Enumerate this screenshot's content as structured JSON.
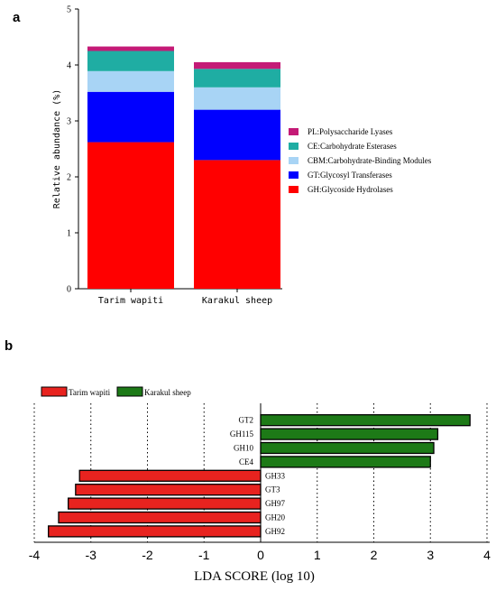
{
  "chart_data": [
    {
      "type": "bar",
      "stacked": true,
      "panel_label": "a",
      "categories": [
        "Tarim wapiti",
        "Karakul sheep"
      ],
      "ylabel": "Relative abundance (%)",
      "ylim": [
        0,
        5
      ],
      "yticks": [
        "0",
        "1",
        "2",
        "3",
        "4",
        "5"
      ],
      "series": [
        {
          "name": "GH:Glycoside Hydrolases",
          "color": "#ff0000",
          "values": [
            2.62,
            2.3
          ]
        },
        {
          "name": "GT:Glycosyl Transferases",
          "color": "#0000ff",
          "values": [
            0.9,
            0.9
          ]
        },
        {
          "name": "CBM:Carbohydrate-Binding Modules",
          "color": "#a8d4f5",
          "values": [
            0.37,
            0.4
          ]
        },
        {
          "name": "CE:Carbohydrate Esterases",
          "color": "#1fada3",
          "values": [
            0.36,
            0.33
          ]
        },
        {
          "name": "PL:Polysaccharide Lyases",
          "color": "#c41a76",
          "values": [
            0.08,
            0.12
          ]
        }
      ],
      "legend_order": [
        "PL:Polysaccharide Lyases",
        "CE:Carbohydrate Esterases",
        "CBM:Carbohydrate-Binding Modules",
        "GT:Glycosyl Transferases",
        "GH:Glycoside Hydrolases"
      ],
      "legend_position": "right"
    },
    {
      "type": "bar",
      "orientation": "horizontal",
      "panel_label": "b",
      "xlabel": "LDA SCORE (log 10)",
      "xlim": [
        -4,
        4
      ],
      "xticks": [
        "-4",
        "-3",
        "-2",
        "-1",
        "0",
        "1",
        "2",
        "3",
        "4"
      ],
      "legend_position": "top-left",
      "legend": [
        {
          "name": "Tarim wapiti",
          "color": "#e8231f"
        },
        {
          "name": "Karakul sheep",
          "color": "#1d7a17"
        }
      ],
      "features": [
        {
          "name": "GT2",
          "group": "Karakul sheep",
          "value": 3.7
        },
        {
          "name": "GH115",
          "group": "Karakul sheep",
          "value": 3.13
        },
        {
          "name": "GH10",
          "group": "Karakul sheep",
          "value": 3.06
        },
        {
          "name": "CE4",
          "group": "Karakul sheep",
          "value": 3.0
        },
        {
          "name": "GH33",
          "group": "Tarim wapiti",
          "value": -3.2
        },
        {
          "name": "GT3",
          "group": "Tarim wapiti",
          "value": -3.27
        },
        {
          "name": "GH97",
          "group": "Tarim wapiti",
          "value": -3.4
        },
        {
          "name": "GH20",
          "group": "Tarim wapiti",
          "value": -3.57
        },
        {
          "name": "GH92",
          "group": "Tarim wapiti",
          "value": -3.75
        }
      ]
    }
  ]
}
